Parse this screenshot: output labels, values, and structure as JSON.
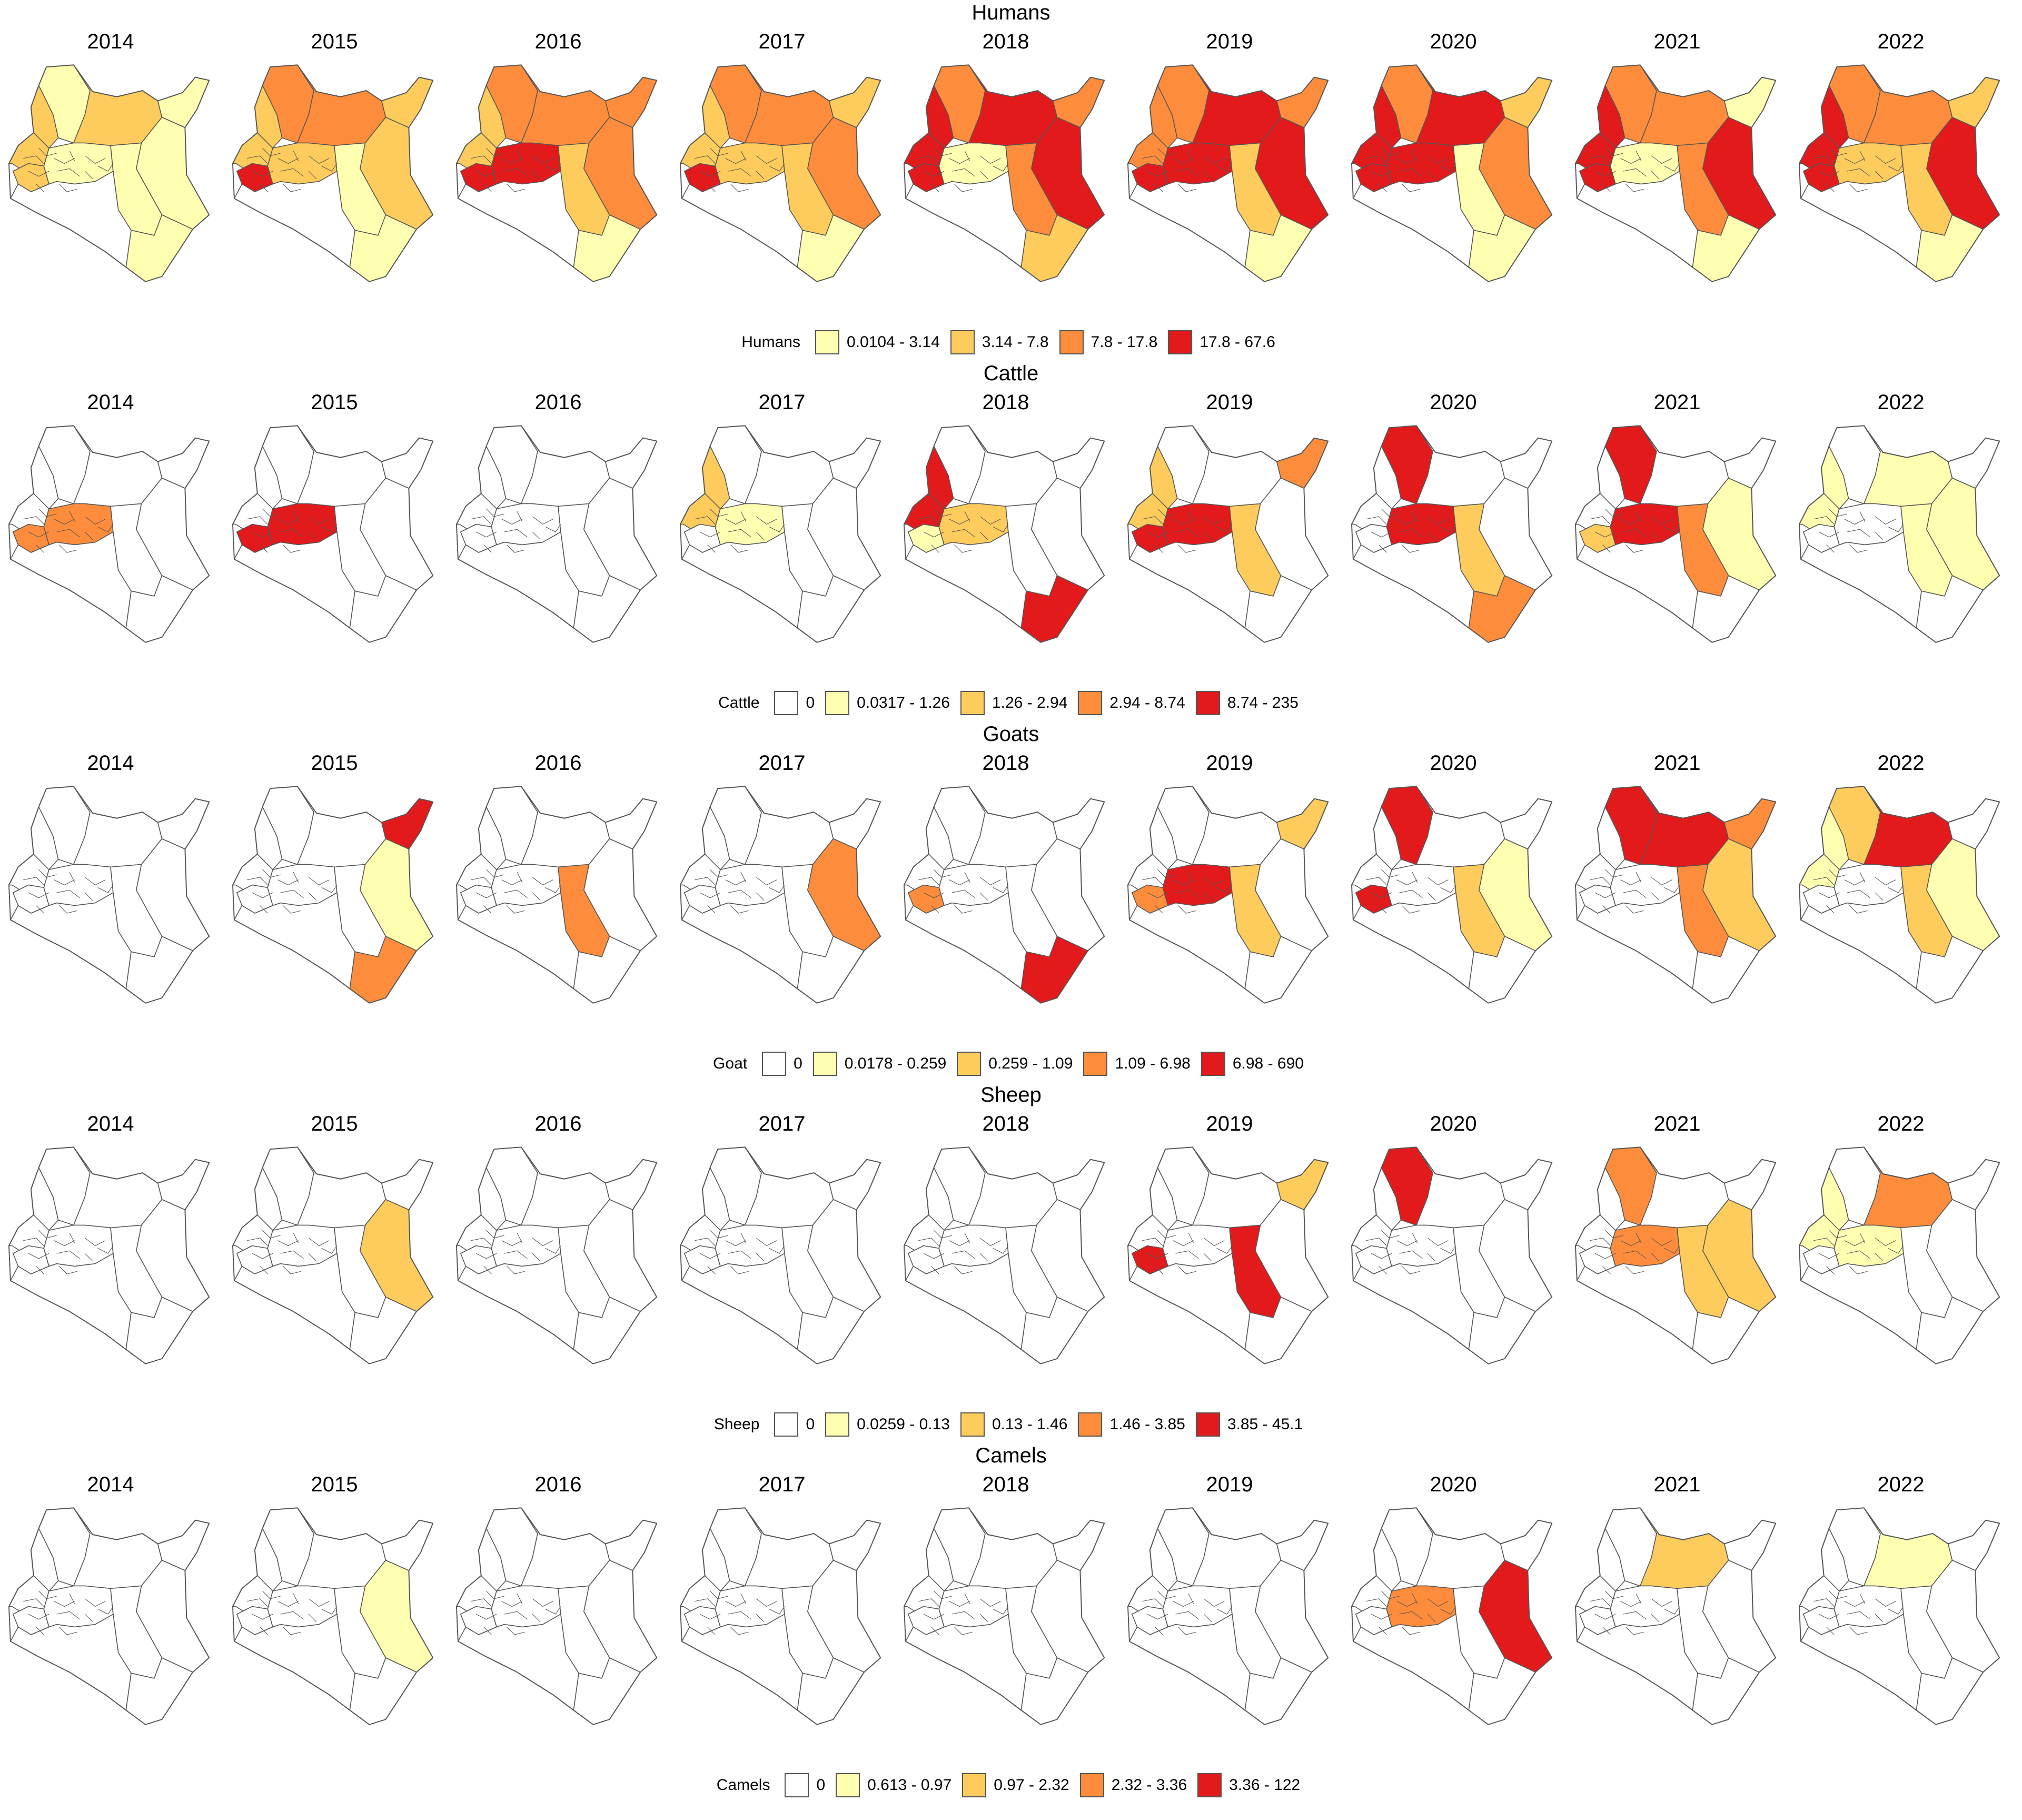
{
  "years": [
    "2014",
    "2015",
    "2016",
    "2017",
    "2018",
    "2019",
    "2020",
    "2021",
    "2022"
  ],
  "colors": {
    "zero": "#ffffff",
    "c1": "#ffffb2",
    "c2": "#fecc5c",
    "c3": "#fd8d3c",
    "c4": "#e31a1c",
    "outline": "#555555"
  },
  "panels": [
    {
      "title": "Humans",
      "legend_title": "Humans",
      "legend": [
        {
          "label": "0.0104 - 3.14",
          "color": "#ffffb2"
        },
        {
          "label": "3.14 - 7.8",
          "color": "#fecc5c"
        },
        {
          "label": "7.8 - 17.8",
          "color": "#fd8d3c"
        },
        {
          "label": "17.8 - 67.6",
          "color": "#e31a1c"
        }
      ],
      "maps": [
        {
          "year": "2014",
          "regions": {
            "west": 2,
            "northwest": 1,
            "central": 1,
            "north": 2,
            "northeast": 1,
            "east": 1,
            "south": 1,
            "coast": 1,
            "lake": 2
          }
        },
        {
          "year": "2015",
          "regions": {
            "west": 2,
            "northwest": 3,
            "central": 2,
            "north": 3,
            "northeast": 2,
            "east": 2,
            "south": 1,
            "coast": 1,
            "lake": 4
          }
        },
        {
          "year": "2016",
          "regions": {
            "west": 2,
            "northwest": 3,
            "central": 4,
            "north": 3,
            "northeast": 3,
            "east": 3,
            "south": 2,
            "coast": 1,
            "lake": 4
          }
        },
        {
          "year": "2017",
          "regions": {
            "west": 2,
            "northwest": 3,
            "central": 2,
            "north": 3,
            "northeast": 2,
            "east": 3,
            "south": 2,
            "coast": 1,
            "lake": 4
          }
        },
        {
          "year": "2018",
          "regions": {
            "west": 4,
            "northwest": 3,
            "central": 1,
            "north": 4,
            "northeast": 3,
            "east": 4,
            "south": 3,
            "coast": 2,
            "lake": 4
          }
        },
        {
          "year": "2019",
          "regions": {
            "west": 3,
            "northwest": 3,
            "central": 4,
            "north": 4,
            "northeast": 3,
            "east": 4,
            "south": 2,
            "coast": 1,
            "lake": 4
          }
        },
        {
          "year": "2020",
          "regions": {
            "west": 4,
            "northwest": 3,
            "central": 4,
            "north": 4,
            "northeast": 2,
            "east": 3,
            "south": 1,
            "coast": 1,
            "lake": 4
          }
        },
        {
          "year": "2021",
          "regions": {
            "west": 4,
            "northwest": 3,
            "central": 1,
            "north": 3,
            "northeast": 1,
            "east": 4,
            "south": 3,
            "coast": 1,
            "lake": 4
          }
        },
        {
          "year": "2022",
          "regions": {
            "west": 4,
            "northwest": 3,
            "central": 2,
            "north": 3,
            "northeast": 2,
            "east": 4,
            "south": 2,
            "coast": 1,
            "lake": 4
          }
        }
      ]
    },
    {
      "title": "Cattle",
      "legend_title": "Cattle",
      "legend": [
        {
          "label": "0",
          "color": "#ffffff"
        },
        {
          "label": "0.0317 - 1.26",
          "color": "#ffffb2"
        },
        {
          "label": "1.26 - 2.94",
          "color": "#fecc5c"
        },
        {
          "label": "2.94 - 8.74",
          "color": "#fd8d3c"
        },
        {
          "label": "8.74 - 235",
          "color": "#e31a1c"
        }
      ],
      "maps": [
        {
          "year": "2014",
          "regions": {
            "lake": 3,
            "central": 3
          }
        },
        {
          "year": "2015",
          "regions": {
            "lake": 4,
            "central": 4
          }
        },
        {
          "year": "2016",
          "regions": {}
        },
        {
          "year": "2017",
          "regions": {
            "west": 2,
            "central": 1
          }
        },
        {
          "year": "2018",
          "regions": {
            "west": 4,
            "lake": 1,
            "central": 2,
            "coast": 4
          }
        },
        {
          "year": "2019",
          "regions": {
            "west": 2,
            "lake": 4,
            "central": 4,
            "northeast": 3,
            "south": 2
          }
        },
        {
          "year": "2020",
          "regions": {
            "northwest": 4,
            "south": 2,
            "coast": 3,
            "central": 4
          }
        },
        {
          "year": "2021",
          "regions": {
            "northwest": 4,
            "lake": 2,
            "central": 4,
            "east": 1,
            "south": 3
          }
        },
        {
          "year": "2022",
          "regions": {
            "north": 1,
            "west": 1,
            "east": 1,
            "south": 1
          }
        }
      ]
    },
    {
      "title": "Goats",
      "legend_title": "Goat",
      "legend": [
        {
          "label": "0",
          "color": "#ffffff"
        },
        {
          "label": "0.0178 - 0.259",
          "color": "#ffffb2"
        },
        {
          "label": "0.259 - 1.09",
          "color": "#fecc5c"
        },
        {
          "label": "1.09 - 6.98",
          "color": "#fd8d3c"
        },
        {
          "label": "6.98 - 690",
          "color": "#e31a1c"
        }
      ],
      "maps": [
        {
          "year": "2014",
          "regions": {}
        },
        {
          "year": "2015",
          "regions": {
            "northeast": 4,
            "east": 1,
            "coast": 3
          }
        },
        {
          "year": "2016",
          "regions": {
            "south": 3
          }
        },
        {
          "year": "2017",
          "regions": {
            "east": 3
          }
        },
        {
          "year": "2018",
          "regions": {
            "lake": 3,
            "coast": 4
          }
        },
        {
          "year": "2019",
          "regions": {
            "northeast": 2,
            "lake": 3,
            "central": 4,
            "south": 2
          }
        },
        {
          "year": "2020",
          "regions": {
            "northwest": 4,
            "east": 1,
            "south": 2,
            "lake": 4
          }
        },
        {
          "year": "2021",
          "regions": {
            "northwest": 4,
            "north": 4,
            "northeast": 3,
            "east": 2,
            "south": 3
          }
        },
        {
          "year": "2022",
          "regions": {
            "northwest": 2,
            "north": 4,
            "west": 1,
            "east": 1,
            "south": 2
          }
        }
      ]
    },
    {
      "title": "Sheep",
      "legend_title": "Sheep",
      "legend": [
        {
          "label": "0",
          "color": "#ffffff"
        },
        {
          "label": "0.0259 - 0.13",
          "color": "#ffffb2"
        },
        {
          "label": "0.13 - 1.46",
          "color": "#fecc5c"
        },
        {
          "label": "1.46 - 3.85",
          "color": "#fd8d3c"
        },
        {
          "label": "3.85 - 45.1",
          "color": "#e31a1c"
        }
      ],
      "maps": [
        {
          "year": "2014",
          "regions": {}
        },
        {
          "year": "2015",
          "regions": {
            "east": 2
          }
        },
        {
          "year": "2016",
          "regions": {}
        },
        {
          "year": "2017",
          "regions": {}
        },
        {
          "year": "2018",
          "regions": {}
        },
        {
          "year": "2019",
          "regions": {
            "northeast": 2,
            "lake": 4,
            "south": 4
          }
        },
        {
          "year": "2020",
          "regions": {
            "northwest": 4
          }
        },
        {
          "year": "2021",
          "regions": {
            "northwest": 3,
            "central": 3,
            "east": 2,
            "south": 2
          }
        },
        {
          "year": "2022",
          "regions": {
            "north": 3,
            "west": 1,
            "central": 1
          }
        }
      ]
    },
    {
      "title": "Camels",
      "legend_title": "Camels",
      "legend": [
        {
          "label": "0",
          "color": "#ffffff"
        },
        {
          "label": "0.613 - 0.97",
          "color": "#ffffb2"
        },
        {
          "label": "0.97 - 2.32",
          "color": "#fecc5c"
        },
        {
          "label": "2.32 - 3.36",
          "color": "#fd8d3c"
        },
        {
          "label": "3.36 - 122",
          "color": "#e31a1c"
        }
      ],
      "maps": [
        {
          "year": "2014",
          "regions": {}
        },
        {
          "year": "2015",
          "regions": {
            "east": 1
          }
        },
        {
          "year": "2016",
          "regions": {}
        },
        {
          "year": "2017",
          "regions": {}
        },
        {
          "year": "2018",
          "regions": {}
        },
        {
          "year": "2019",
          "regions": {}
        },
        {
          "year": "2020",
          "regions": {
            "central": 3,
            "east": 4
          }
        },
        {
          "year": "2021",
          "regions": {
            "north": 2
          }
        },
        {
          "year": "2022",
          "regions": {
            "north": 1
          }
        }
      ]
    }
  ]
}
